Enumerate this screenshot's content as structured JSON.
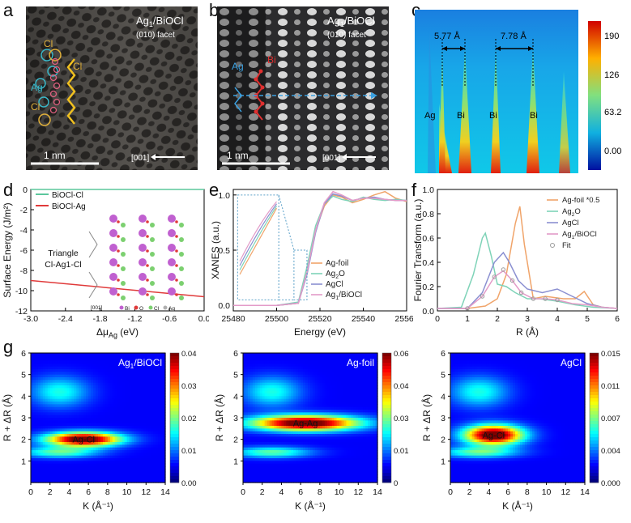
{
  "panel_labels": [
    "a",
    "b",
    "c",
    "d",
    "e",
    "f",
    "g"
  ],
  "panel_a": {
    "sample": "Ag1/BiOCl",
    "sample_main": "Ag",
    "sample_sub": "1",
    "sample_rest": "/BiOCl",
    "facet": "(010) facet",
    "scale": "1 nm",
    "direction": "[001]",
    "labels": {
      "cl1": "Cl",
      "cl2": "Cl",
      "ag": "Ag",
      "cl3": "Cl"
    }
  },
  "panel_b": {
    "sample_main": "Ag",
    "sample_sub": "1",
    "sample_rest": "/BiOCl",
    "facet": "(010) facet",
    "scale": "1 nm",
    "direction": "[001]",
    "labels": {
      "ag": "Ag",
      "bi": "Bi"
    }
  },
  "panel_c": {
    "dist1": "5.77 Å",
    "dist2": "7.78 Å",
    "atoms": [
      "Ag",
      "Bi",
      "Bi",
      "Bi"
    ],
    "colorbar_ticks": [
      "190",
      "126",
      "63.2",
      "0.00"
    ]
  },
  "colors": {
    "series_ag_foil": "#f0a46a",
    "series_ag2o": "#7fd3b8",
    "series_agcl": "#8a8fd1",
    "series_ag1": "#e39bc8",
    "series_fit": "#9a9a9a",
    "bioclcl": "#5cc79c",
    "bioclag": "#e03a3a"
  },
  "chart_data": [
    {
      "id": "d",
      "type": "line",
      "xlabel_prefix": "Δμ",
      "xlabel_sub": "Ag",
      "xlabel_suffix": " (eV)",
      "ylabel": "Surface Energy (J/m²)",
      "xlim": [
        -3.0,
        0.0
      ],
      "ylim": [
        -12,
        0
      ],
      "xticks": [
        "-3.0",
        "-2.4",
        "-1.8",
        "-1.2",
        "-0.6",
        "0.0"
      ],
      "yticks": [
        "0",
        "-2",
        "-4",
        "-6",
        "-8",
        "-10",
        "-12"
      ],
      "series": [
        {
          "name": "BiOCl-Cl",
          "x": [
            -3.0,
            0.0
          ],
          "y": [
            0.0,
            0.0
          ]
        },
        {
          "name": "BiOCl-Ag",
          "x": [
            -3.0,
            0.0
          ],
          "y": [
            -9.0,
            -10.6
          ]
        }
      ],
      "inset": {
        "title1": "Triangle",
        "title2": "Cl-Ag1-Cl",
        "direction": "[001]",
        "legend": [
          "Bi",
          "O",
          "Cl",
          "Ag"
        ]
      }
    },
    {
      "id": "e",
      "type": "line",
      "xlabel": "Energy (eV)",
      "ylabel": "XANES (a.u.)",
      "xlim": [
        25480,
        25560
      ],
      "ylim": [
        -0.05,
        1.05
      ],
      "xticks": [
        "25480",
        "25500",
        "25520",
        "25540",
        "25560"
      ],
      "yticks": [
        "0.0",
        "0.5",
        "1.0"
      ],
      "series": [
        {
          "name": "Ag-foil",
          "x": [
            25480,
            25500,
            25510,
            25514,
            25518,
            25522,
            25526,
            25530,
            25535,
            25540,
            25545,
            25550,
            25555,
            25560
          ],
          "y": [
            0.0,
            0.0,
            0.02,
            0.3,
            0.68,
            0.9,
            1.0,
            0.98,
            0.93,
            0.96,
            1.0,
            1.03,
            0.97,
            0.94
          ]
        },
        {
          "name": "Ag2O",
          "x": [
            25480,
            25500,
            25510,
            25514,
            25518,
            25522,
            25526,
            25530,
            25535,
            25540,
            25545,
            25550,
            25555,
            25560
          ],
          "y": [
            0.0,
            0.0,
            0.03,
            0.35,
            0.72,
            0.92,
            0.99,
            0.96,
            0.94,
            0.98,
            0.96,
            0.95,
            0.96,
            0.95
          ]
        },
        {
          "name": "AgCl",
          "x": [
            25480,
            25500,
            25510,
            25514,
            25518,
            25522,
            25526,
            25530,
            25535,
            25540,
            25545,
            25550,
            25555,
            25560
          ],
          "y": [
            0.0,
            0.0,
            0.02,
            0.28,
            0.66,
            0.92,
            1.01,
            0.99,
            0.95,
            0.97,
            0.98,
            0.96,
            0.95,
            0.95
          ]
        },
        {
          "name": "Ag1/BiOCl",
          "x": [
            25480,
            25500,
            25510,
            25514,
            25518,
            25522,
            25526,
            25530,
            25535,
            25540,
            25545,
            25550,
            25555,
            25560
          ],
          "y": [
            0.0,
            0.0,
            0.02,
            0.3,
            0.68,
            0.93,
            1.03,
            1.0,
            0.95,
            0.97,
            0.97,
            0.96,
            0.95,
            0.95
          ]
        }
      ],
      "legend": [
        {
          "main": "Ag-foil",
          "sub": "",
          "rest": ""
        },
        {
          "main": "Ag",
          "sub": "2",
          "rest": "O"
        },
        {
          "main": "AgCl",
          "sub": "",
          "rest": ""
        },
        {
          "main": "Ag",
          "sub": "1",
          "rest": "/BiOCl"
        }
      ]
    },
    {
      "id": "f",
      "type": "line",
      "xlabel": "R (Å)",
      "ylabel": "Fourier Transform (a.u.)",
      "xlim": [
        0,
        6
      ],
      "ylim": [
        0,
        1.0
      ],
      "xticks": [
        "0",
        "1",
        "2",
        "3",
        "4",
        "5",
        "6"
      ],
      "yticks": [
        "0.0",
        "0.2",
        "0.4",
        "0.6",
        "0.8",
        "1.0"
      ],
      "series": [
        {
          "name": "Ag-foil *0.5",
          "x": [
            0,
            1.0,
            1.6,
            2.0,
            2.3,
            2.6,
            2.75,
            2.9,
            3.2,
            3.6,
            4.2,
            4.6,
            4.9,
            5.2,
            5.5,
            6
          ],
          "y": [
            0.02,
            0.02,
            0.04,
            0.1,
            0.3,
            0.72,
            0.86,
            0.55,
            0.1,
            0.12,
            0.1,
            0.1,
            0.16,
            0.05,
            0.03,
            0.02
          ]
        },
        {
          "name": "Ag2O",
          "x": [
            0,
            0.8,
            1.2,
            1.5,
            1.6,
            1.8,
            2.0,
            2.3,
            2.6,
            3.0,
            3.4,
            4.0,
            4.6,
            5.2,
            6
          ],
          "y": [
            0.02,
            0.03,
            0.3,
            0.6,
            0.64,
            0.45,
            0.22,
            0.2,
            0.15,
            0.1,
            0.1,
            0.08,
            0.05,
            0.03,
            0.02
          ]
        },
        {
          "name": "AgCl",
          "x": [
            0,
            1.0,
            1.5,
            1.9,
            2.2,
            2.4,
            2.7,
            3.0,
            3.5,
            4.0,
            4.5,
            5.0,
            5.5,
            6
          ],
          "y": [
            0.02,
            0.02,
            0.15,
            0.4,
            0.48,
            0.4,
            0.25,
            0.18,
            0.15,
            0.18,
            0.12,
            0.06,
            0.03,
            0.02
          ]
        },
        {
          "name": "Ag1/BiOCl",
          "x": [
            0,
            1.0,
            1.5,
            1.9,
            2.2,
            2.5,
            2.8,
            3.2,
            3.6,
            4.0,
            4.5,
            5.0,
            5.5,
            6
          ],
          "y": [
            0.02,
            0.02,
            0.12,
            0.28,
            0.33,
            0.25,
            0.15,
            0.1,
            0.1,
            0.09,
            0.06,
            0.05,
            0.03,
            0.02
          ]
        },
        {
          "name": "Fit",
          "x": [
            1.0,
            1.5,
            1.9,
            2.2,
            2.5,
            2.8,
            3.2,
            3.6,
            4.0
          ],
          "y": [
            0.02,
            0.12,
            0.28,
            0.34,
            0.25,
            0.15,
            0.1,
            0.1,
            0.09
          ]
        }
      ],
      "legend": [
        {
          "main": "Ag-foil *0.5",
          "sub": "",
          "rest": ""
        },
        {
          "main": "Ag",
          "sub": "2",
          "rest": "O"
        },
        {
          "main": "AgCl",
          "sub": "",
          "rest": ""
        },
        {
          "main": "Ag",
          "sub": "1",
          "rest": "/BiOCl"
        },
        {
          "main": "Fit",
          "sub": "",
          "rest": ""
        }
      ]
    },
    {
      "id": "g1",
      "type": "heatmap",
      "title_main": "Ag",
      "title_sub": "1",
      "title_rest": "/BiOCl",
      "xlabel": "K (Å⁻¹)",
      "ylabel": "R + ΔR (Å)",
      "xlim": [
        0,
        14
      ],
      "ylim": [
        0,
        6
      ],
      "xticks": [
        "0",
        "2",
        "4",
        "6",
        "8",
        "10",
        "12",
        "14"
      ],
      "yticks": [
        "1",
        "2",
        "3",
        "4",
        "5",
        "6"
      ],
      "colorbar_ticks": [
        "0.04",
        "0.03",
        "0.02",
        "0.01",
        "0.00"
      ],
      "vmax": 0.04,
      "peak_label": "Ag-Cl",
      "peak": {
        "k": 5.5,
        "r": 2.0,
        "value": 0.04
      }
    },
    {
      "id": "g2",
      "type": "heatmap",
      "title_main": "Ag-foil",
      "title_sub": "",
      "title_rest": "",
      "xlabel": "K (Å⁻¹)",
      "ylabel": "R + ΔR (Å)",
      "xlim": [
        0,
        14
      ],
      "ylim": [
        0,
        6
      ],
      "xticks": [
        "0",
        "2",
        "4",
        "6",
        "8",
        "10",
        "12",
        "14"
      ],
      "yticks": [
        "1",
        "2",
        "3",
        "4",
        "5",
        "6"
      ],
      "colorbar_ticks": [
        "0.06",
        "0.04",
        "0.03",
        "0.01",
        "0"
      ],
      "vmax": 0.06,
      "peak_label": "Ag-Ag",
      "peak": {
        "k": 6.5,
        "r": 2.75,
        "value": 0.06
      }
    },
    {
      "id": "g3",
      "type": "heatmap",
      "title_main": "AgCl",
      "title_sub": "",
      "title_rest": "",
      "xlabel": "K (Å⁻¹)",
      "ylabel": "R + ΔR (Å)",
      "xlim": [
        0,
        14
      ],
      "ylim": [
        0,
        6
      ],
      "xticks": [
        "0",
        "2",
        "4",
        "6",
        "8",
        "10",
        "12",
        "14"
      ],
      "yticks": [
        "1",
        "2",
        "3",
        "4",
        "5",
        "6"
      ],
      "colorbar_ticks": [
        "0.015",
        "0.011",
        "0.007",
        "0.004",
        "0.000"
      ],
      "vmax": 0.015,
      "peak_label": "Ag-Cl",
      "peak": {
        "k": 4.5,
        "r": 2.2,
        "value": 0.015
      }
    }
  ]
}
